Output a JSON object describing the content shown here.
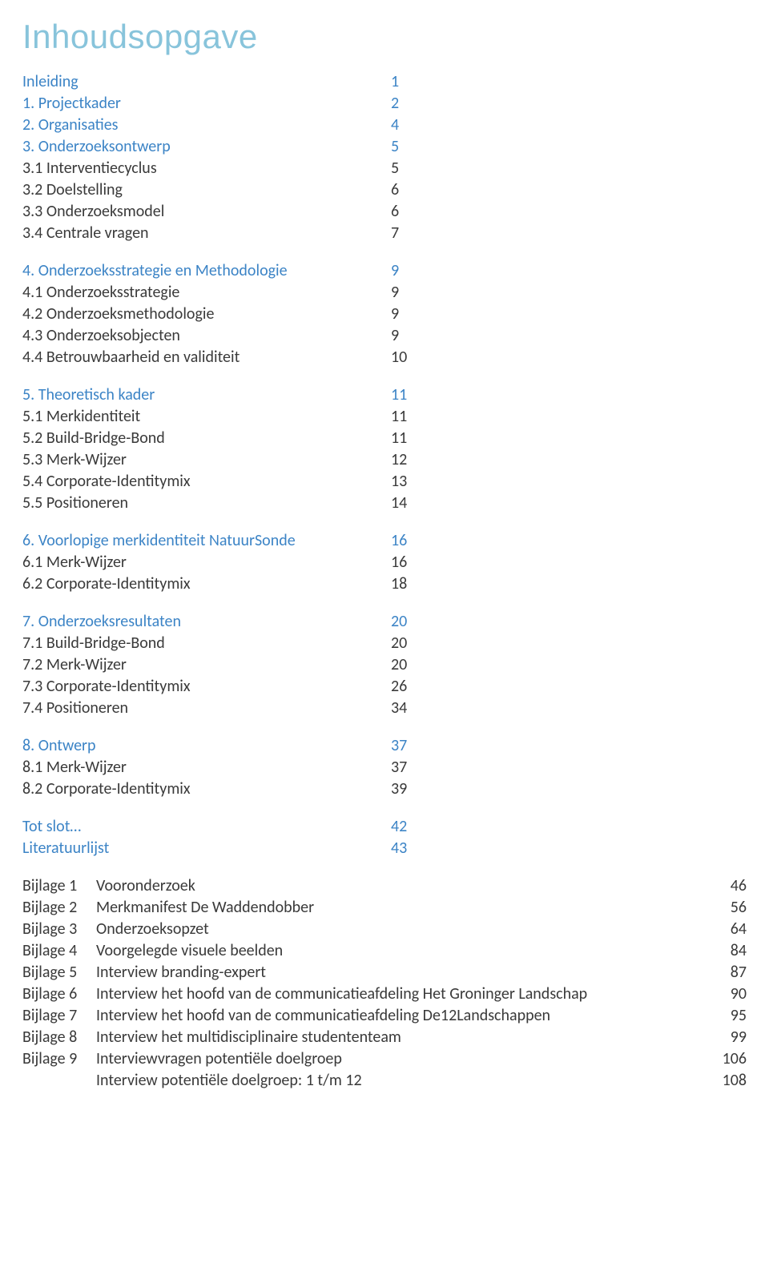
{
  "title": "Inhoudsopgave",
  "colors": {
    "title": "#88c4db",
    "heading": "#3c84c6",
    "body": "#3a3a3a",
    "background": "#ffffff"
  },
  "typography": {
    "title_fontsize": 42,
    "body_fontsize": 20,
    "title_font": "Segoe Script / handwritten",
    "body_font": "Calibri"
  },
  "sections": [
    {
      "entries": [
        {
          "label": "Inleiding",
          "page": "1",
          "is_heading": true
        },
        {
          "label": "1.      Projectkader",
          "page": "2",
          "is_heading": true
        },
        {
          "label": "2.      Organisaties",
          "page": "4",
          "is_heading": true
        },
        {
          "label": "3.      Onderzoeksontwerp",
          "page": "5",
          "is_heading": true
        },
        {
          "label": "3.1 Interventiecyclus",
          "page": "5",
          "is_heading": false
        },
        {
          "label": "3.2 Doelstelling",
          "page": "6",
          "is_heading": false
        },
        {
          "label": "3.3 Onderzoeksmodel",
          "page": "6",
          "is_heading": false
        },
        {
          "label": "3.4 Centrale vragen",
          "page": "7",
          "is_heading": false
        }
      ]
    },
    {
      "entries": [
        {
          "label": "4. Onderzoeksstrategie en Methodologie",
          "page": "9",
          "is_heading": true
        },
        {
          "label": "4.1 Onderzoeksstrategie",
          "page": "9",
          "is_heading": false
        },
        {
          "label": "4.2 Onderzoeksmethodologie",
          "page": "9",
          "is_heading": false
        },
        {
          "label": "4.3 Onderzoeksobjecten",
          "page": "9",
          "is_heading": false
        },
        {
          "label": "4.4 Betrouwbaarheid en validiteit",
          "page": "10",
          "is_heading": false
        }
      ]
    },
    {
      "entries": [
        {
          "label": "5. Theoretisch kader",
          "page": "11",
          "is_heading": true
        },
        {
          "label": "5.1 Merkidentiteit",
          "page": "11",
          "is_heading": false
        },
        {
          "label": "5.2 Build-Bridge-Bond",
          "page": "11",
          "is_heading": false
        },
        {
          "label": "5.3 Merk-Wijzer",
          "page": "12",
          "is_heading": false
        },
        {
          "label": "5.4 Corporate-Identitymix",
          "page": "13",
          "is_heading": false
        },
        {
          "label": "5.5 Positioneren",
          "page": "14",
          "is_heading": false
        }
      ]
    },
    {
      "entries": [
        {
          "label": "6. Voorlopige merkidentiteit NatuurSonde",
          "page": "16",
          "is_heading": true
        },
        {
          "label": "6.1 Merk-Wijzer",
          "page": "16",
          "is_heading": false
        },
        {
          "label": "6.2 Corporate-Identitymix",
          "page": "18",
          "is_heading": false
        }
      ]
    },
    {
      "entries": [
        {
          "label": "7. Onderzoeksresultaten",
          "page": "20",
          "is_heading": true
        },
        {
          "label": "7.1 Build-Bridge-Bond",
          "page": "20",
          "is_heading": false
        },
        {
          "label": "7.2 Merk-Wijzer",
          "page": "20",
          "is_heading": false
        },
        {
          "label": "7.3 Corporate-Identitymix",
          "page": "26",
          "is_heading": false
        },
        {
          "label": "7.4 Positioneren",
          "page": "34",
          "is_heading": false
        }
      ]
    },
    {
      "entries": [
        {
          "label": "8. Ontwerp",
          "page": "37",
          "is_heading": true
        },
        {
          "label": "8.1 Merk-Wijzer",
          "page": "37",
          "is_heading": false
        },
        {
          "label": "8.2 Corporate-Identitymix",
          "page": "39",
          "is_heading": false
        }
      ]
    },
    {
      "entries": [
        {
          "label": "Tot slot…",
          "page": "42",
          "is_heading": true
        },
        {
          "label": "Literatuurlijst",
          "page": "43",
          "is_heading": true
        }
      ]
    }
  ],
  "bijlagen": [
    {
      "label": "Bijlage 1",
      "title": "Vooronderzoek",
      "page": "46"
    },
    {
      "label": "Bijlage 2",
      "title": "Merkmanifest De Waddendobber",
      "page": "56"
    },
    {
      "label": "Bijlage 3",
      "title": "Onderzoeksopzet",
      "page": "64"
    },
    {
      "label": "Bijlage 4",
      "title": "Voorgelegde visuele beelden",
      "page": "84"
    },
    {
      "label": "Bijlage 5",
      "title": "Interview branding-expert",
      "page": "87"
    },
    {
      "label": "Bijlage 6",
      "title": "Interview het hoofd van de communicatieafdeling Het Groninger Landschap",
      "page": "90"
    },
    {
      "label": "Bijlage 7",
      "title": "Interview het hoofd van de communicatieafdeling De12Landschappen",
      "page": "95"
    },
    {
      "label": "Bijlage 8",
      "title": "Interview het multidisciplinaire studententeam",
      "page": "99"
    },
    {
      "label": "Bijlage 9",
      "title": "Interviewvragen potentiële doelgroep",
      "page": "106"
    },
    {
      "label": "",
      "title": "Interview potentiële doelgroep: 1 t/m 12",
      "page": "108"
    }
  ]
}
